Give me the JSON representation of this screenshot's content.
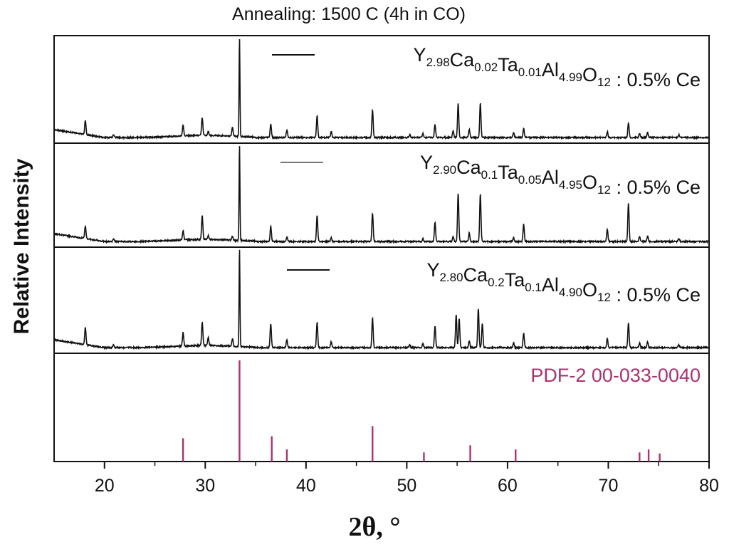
{
  "chart_data": {
    "type": "line",
    "title": "Annealing: 1500 C (4h in CO)",
    "xlabel": "2θ, °",
    "ylabel": "Relative Intensity",
    "xlim": [
      15,
      80
    ],
    "xticks": [
      20,
      30,
      40,
      50,
      60,
      70,
      80
    ],
    "grid": false,
    "legend_position": "top-right of each panel",
    "series": [
      {
        "name": "Y2.98Ca0.02Ta0.01Al4.99O12 : 0.5% Ce",
        "legend_parts": [
          {
            "t": "Y",
            "sub": false
          },
          {
            "t": "2.98",
            "sub": true
          },
          {
            "t": "Ca",
            "sub": false
          },
          {
            "t": "0.02",
            "sub": true
          },
          {
            "t": "Ta",
            "sub": false
          },
          {
            "t": "0.01",
            "sub": true
          },
          {
            "t": "Al",
            "sub": false
          },
          {
            "t": "4.99",
            "sub": true
          },
          {
            "t": "O",
            "sub": false
          },
          {
            "t": "12",
            "sub": true
          },
          {
            "t": " : 0.5% Ce",
            "sub": false
          }
        ],
        "color": "#111111",
        "peaks": [
          [
            18.1,
            0.14
          ],
          [
            20.9,
            0.03
          ],
          [
            27.8,
            0.11
          ],
          [
            29.7,
            0.18
          ],
          [
            30.3,
            0.04
          ],
          [
            32.7,
            0.09
          ],
          [
            33.4,
            1.0
          ],
          [
            36.5,
            0.14
          ],
          [
            38.1,
            0.08
          ],
          [
            41.1,
            0.22
          ],
          [
            42.5,
            0.06
          ],
          [
            46.6,
            0.28
          ],
          [
            50.3,
            0.03
          ],
          [
            51.6,
            0.04
          ],
          [
            52.8,
            0.13
          ],
          [
            54.6,
            0.07
          ],
          [
            55.1,
            0.34
          ],
          [
            56.2,
            0.08
          ],
          [
            57.3,
            0.35
          ],
          [
            60.6,
            0.05
          ],
          [
            61.6,
            0.09
          ],
          [
            69.9,
            0.06
          ],
          [
            72.0,
            0.15
          ],
          [
            73.1,
            0.04
          ],
          [
            73.9,
            0.05
          ],
          [
            77.0,
            0.03
          ]
        ]
      },
      {
        "name": "Y2.90Ca0.1Ta0.05Al4.95O12 : 0.5% Ce",
        "legend_parts": [
          {
            "t": "Y",
            "sub": false
          },
          {
            "t": "2.90",
            "sub": true
          },
          {
            "t": "Ca",
            "sub": false
          },
          {
            "t": "0.1",
            "sub": true
          },
          {
            "t": "Ta",
            "sub": false
          },
          {
            "t": "0.05",
            "sub": true
          },
          {
            "t": "Al",
            "sub": false
          },
          {
            "t": "4.95",
            "sub": true
          },
          {
            "t": "O",
            "sub": false
          },
          {
            "t": "12",
            "sub": true
          },
          {
            "t": " : 0.5% Ce",
            "sub": false
          }
        ],
        "color": "#111111",
        "peaks": [
          [
            18.1,
            0.13
          ],
          [
            20.9,
            0.03
          ],
          [
            27.8,
            0.1
          ],
          [
            29.7,
            0.25
          ],
          [
            30.3,
            0.04
          ],
          [
            32.7,
            0.04
          ],
          [
            33.4,
            1.0
          ],
          [
            36.5,
            0.16
          ],
          [
            38.1,
            0.05
          ],
          [
            41.1,
            0.27
          ],
          [
            42.5,
            0.04
          ],
          [
            46.6,
            0.3
          ],
          [
            51.6,
            0.03
          ],
          [
            52.8,
            0.2
          ],
          [
            54.6,
            0.05
          ],
          [
            55.1,
            0.5
          ],
          [
            56.2,
            0.09
          ],
          [
            57.3,
            0.5
          ],
          [
            60.6,
            0.04
          ],
          [
            61.6,
            0.18
          ],
          [
            69.9,
            0.13
          ],
          [
            72.0,
            0.4
          ],
          [
            73.1,
            0.05
          ],
          [
            73.9,
            0.06
          ],
          [
            77.0,
            0.03
          ]
        ]
      },
      {
        "name": "Y2.80Ca0.2Ta0.1Al4.90O12 : 0.5% Ce",
        "legend_parts": [
          {
            "t": "Y",
            "sub": false
          },
          {
            "t": "2.80",
            "sub": true
          },
          {
            "t": "Ca",
            "sub": false
          },
          {
            "t": "0.2",
            "sub": true
          },
          {
            "t": "Ta",
            "sub": false
          },
          {
            "t": "0.1",
            "sub": true
          },
          {
            "t": "Al",
            "sub": false
          },
          {
            "t": "4.90",
            "sub": true
          },
          {
            "t": "O",
            "sub": false
          },
          {
            "t": "12",
            "sub": true
          },
          {
            "t": " : 0.5% Ce",
            "sub": false
          }
        ],
        "color": "#111111",
        "peaks": [
          [
            18.1,
            0.18
          ],
          [
            20.9,
            0.03
          ],
          [
            27.8,
            0.14
          ],
          [
            29.7,
            0.24
          ],
          [
            30.3,
            0.08
          ],
          [
            32.7,
            0.08
          ],
          [
            33.4,
            1.0
          ],
          [
            36.5,
            0.25
          ],
          [
            38.1,
            0.08
          ],
          [
            41.1,
            0.26
          ],
          [
            42.5,
            0.06
          ],
          [
            46.6,
            0.3
          ],
          [
            50.3,
            0.03
          ],
          [
            51.6,
            0.04
          ],
          [
            52.8,
            0.22
          ],
          [
            54.9,
            0.34
          ],
          [
            55.2,
            0.3
          ],
          [
            56.2,
            0.07
          ],
          [
            57.1,
            0.4
          ],
          [
            57.5,
            0.25
          ],
          [
            60.6,
            0.05
          ],
          [
            61.6,
            0.15
          ],
          [
            69.9,
            0.09
          ],
          [
            72.0,
            0.25
          ],
          [
            73.1,
            0.05
          ],
          [
            73.9,
            0.06
          ],
          [
            77.0,
            0.03
          ]
        ]
      }
    ],
    "reference": {
      "name": "PDF-2 00-033-0040",
      "color": "#b0306f",
      "lines": [
        [
          27.8,
          0.23
        ],
        [
          33.4,
          1.0
        ],
        [
          36.6,
          0.25
        ],
        [
          38.1,
          0.12
        ],
        [
          46.6,
          0.35
        ],
        [
          51.7,
          0.09
        ],
        [
          56.3,
          0.16
        ],
        [
          60.8,
          0.12
        ],
        [
          73.1,
          0.09
        ],
        [
          74.0,
          0.12
        ],
        [
          75.1,
          0.08
        ]
      ]
    }
  }
}
